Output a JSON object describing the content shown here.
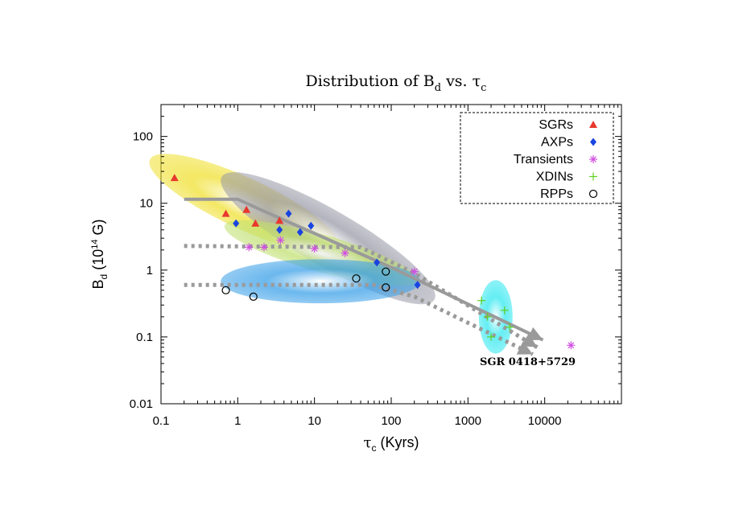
{
  "chart_data": {
    "type": "scatter",
    "title": "Distribution of Bd vs. τc",
    "title_parts": {
      "main": "Distribution of B",
      "sub1": "d",
      "mid": " vs. τ",
      "sub2": "c"
    },
    "xlabel": "τc (Kyrs)",
    "xlabel_parts": {
      "tau": "τ",
      "sub": "c",
      "rest": " (Kyrs)"
    },
    "ylabel": "Bd (10^14 G)",
    "ylabel_parts": {
      "main": "B",
      "sub": "d",
      "rest1": " (10",
      "sup": "14",
      "rest2": " G)"
    },
    "xscale": "log",
    "yscale": "log",
    "xlim": [
      0.1,
      100000
    ],
    "ylim": [
      0.01,
      300
    ],
    "x_ticks": [
      0.1,
      1,
      10,
      100,
      1000,
      10000
    ],
    "x_tick_labels": [
      "0.1",
      "1",
      "10",
      "100",
      "1000",
      "10000"
    ],
    "y_ticks": [
      0.01,
      0.1,
      1,
      10,
      100
    ],
    "y_tick_labels": [
      "0.01",
      "0.1",
      "1",
      "10",
      "100"
    ],
    "legend_position": "top-right",
    "series": [
      {
        "name": "SGRs",
        "marker": "triangle",
        "color": "#e8382e",
        "points": [
          [
            0.15,
            24
          ],
          [
            0.7,
            7
          ],
          [
            1.3,
            8
          ],
          [
            1.7,
            5
          ],
          [
            3.5,
            5.5
          ]
        ]
      },
      {
        "name": "AXPs",
        "marker": "diamond",
        "color": "#1a44e0",
        "points": [
          [
            0.95,
            5
          ],
          [
            3.5,
            4
          ],
          [
            4.6,
            7
          ],
          [
            6.5,
            3.7
          ],
          [
            9,
            4.6
          ],
          [
            65,
            1.3
          ],
          [
            220,
            0.6
          ]
        ]
      },
      {
        "name": "Transients",
        "marker": "asterisk",
        "color": "#d050e0",
        "points": [
          [
            1.4,
            2.2
          ],
          [
            2.2,
            2.2
          ],
          [
            3.6,
            2.8
          ],
          [
            10,
            2.1
          ],
          [
            25,
            1.8
          ],
          [
            200,
            0.95
          ],
          [
            22000,
            0.075
          ]
        ]
      },
      {
        "name": "XDINs",
        "marker": "plus",
        "color": "#60d020",
        "points": [
          [
            1500,
            0.35
          ],
          [
            1800,
            0.2
          ],
          [
            2000,
            0.1
          ],
          [
            3000,
            0.25
          ],
          [
            3500,
            0.14
          ]
        ]
      },
      {
        "name": "RPPs",
        "marker": "circle",
        "color": "#000000",
        "points": [
          [
            0.7,
            0.5
          ],
          [
            1.6,
            0.4
          ],
          [
            35,
            0.75
          ],
          [
            85,
            0.55
          ],
          [
            85,
            0.95
          ]
        ]
      }
    ],
    "regions": [
      {
        "name": "yellow-region",
        "color": "#f0e030",
        "center": [
          1.2,
          10
        ],
        "rx_decades": 1.35,
        "ry_decades": 0.38,
        "angle_deg": 25
      },
      {
        "name": "gray-region",
        "color": "#9a9aa8",
        "center": [
          15,
          3
        ],
        "rx_decades": 1.6,
        "ry_decades": 0.42,
        "angle_deg": 30
      },
      {
        "name": "green-region",
        "color": "#c0e070",
        "center": [
          12,
          1.8
        ],
        "rx_decades": 1.3,
        "ry_decades": 0.28,
        "angle_deg": 16
      },
      {
        "name": "blue-region",
        "color": "#3aa0e8",
        "center": [
          12,
          0.68
        ],
        "rx_decades": 1.3,
        "ry_decades": 0.33,
        "angle_deg": 0
      },
      {
        "name": "cyan-region",
        "color": "#30e8f0",
        "center": [
          2300,
          0.2
        ],
        "rx_decades": 0.22,
        "ry_decades": 0.55,
        "angle_deg": 0
      }
    ],
    "tracks": [
      {
        "name": "solid-track",
        "style": "solid",
        "color": "#9a9a9a",
        "points": [
          [
            0.2,
            11.5
          ],
          [
            1.0,
            11.5
          ],
          [
            2.0,
            8.0
          ],
          [
            100,
            1.1
          ],
          [
            9500,
            0.09
          ]
        ]
      },
      {
        "name": "dotted-track-1",
        "style": "dotted",
        "color": "#9a9a9a",
        "points": [
          [
            0.2,
            2.3
          ],
          [
            40,
            2.2
          ],
          [
            200,
            0.9
          ],
          [
            8000,
            0.07
          ]
        ]
      },
      {
        "name": "dotted-track-2",
        "style": "dotted",
        "color": "#9a9a9a",
        "points": [
          [
            0.2,
            0.6
          ],
          [
            60,
            0.6
          ],
          [
            200,
            0.4
          ],
          [
            7000,
            0.055
          ]
        ]
      }
    ],
    "annotations": [
      {
        "text": "SGR 0418+5729",
        "x": 6000,
        "y": 0.038
      }
    ]
  }
}
